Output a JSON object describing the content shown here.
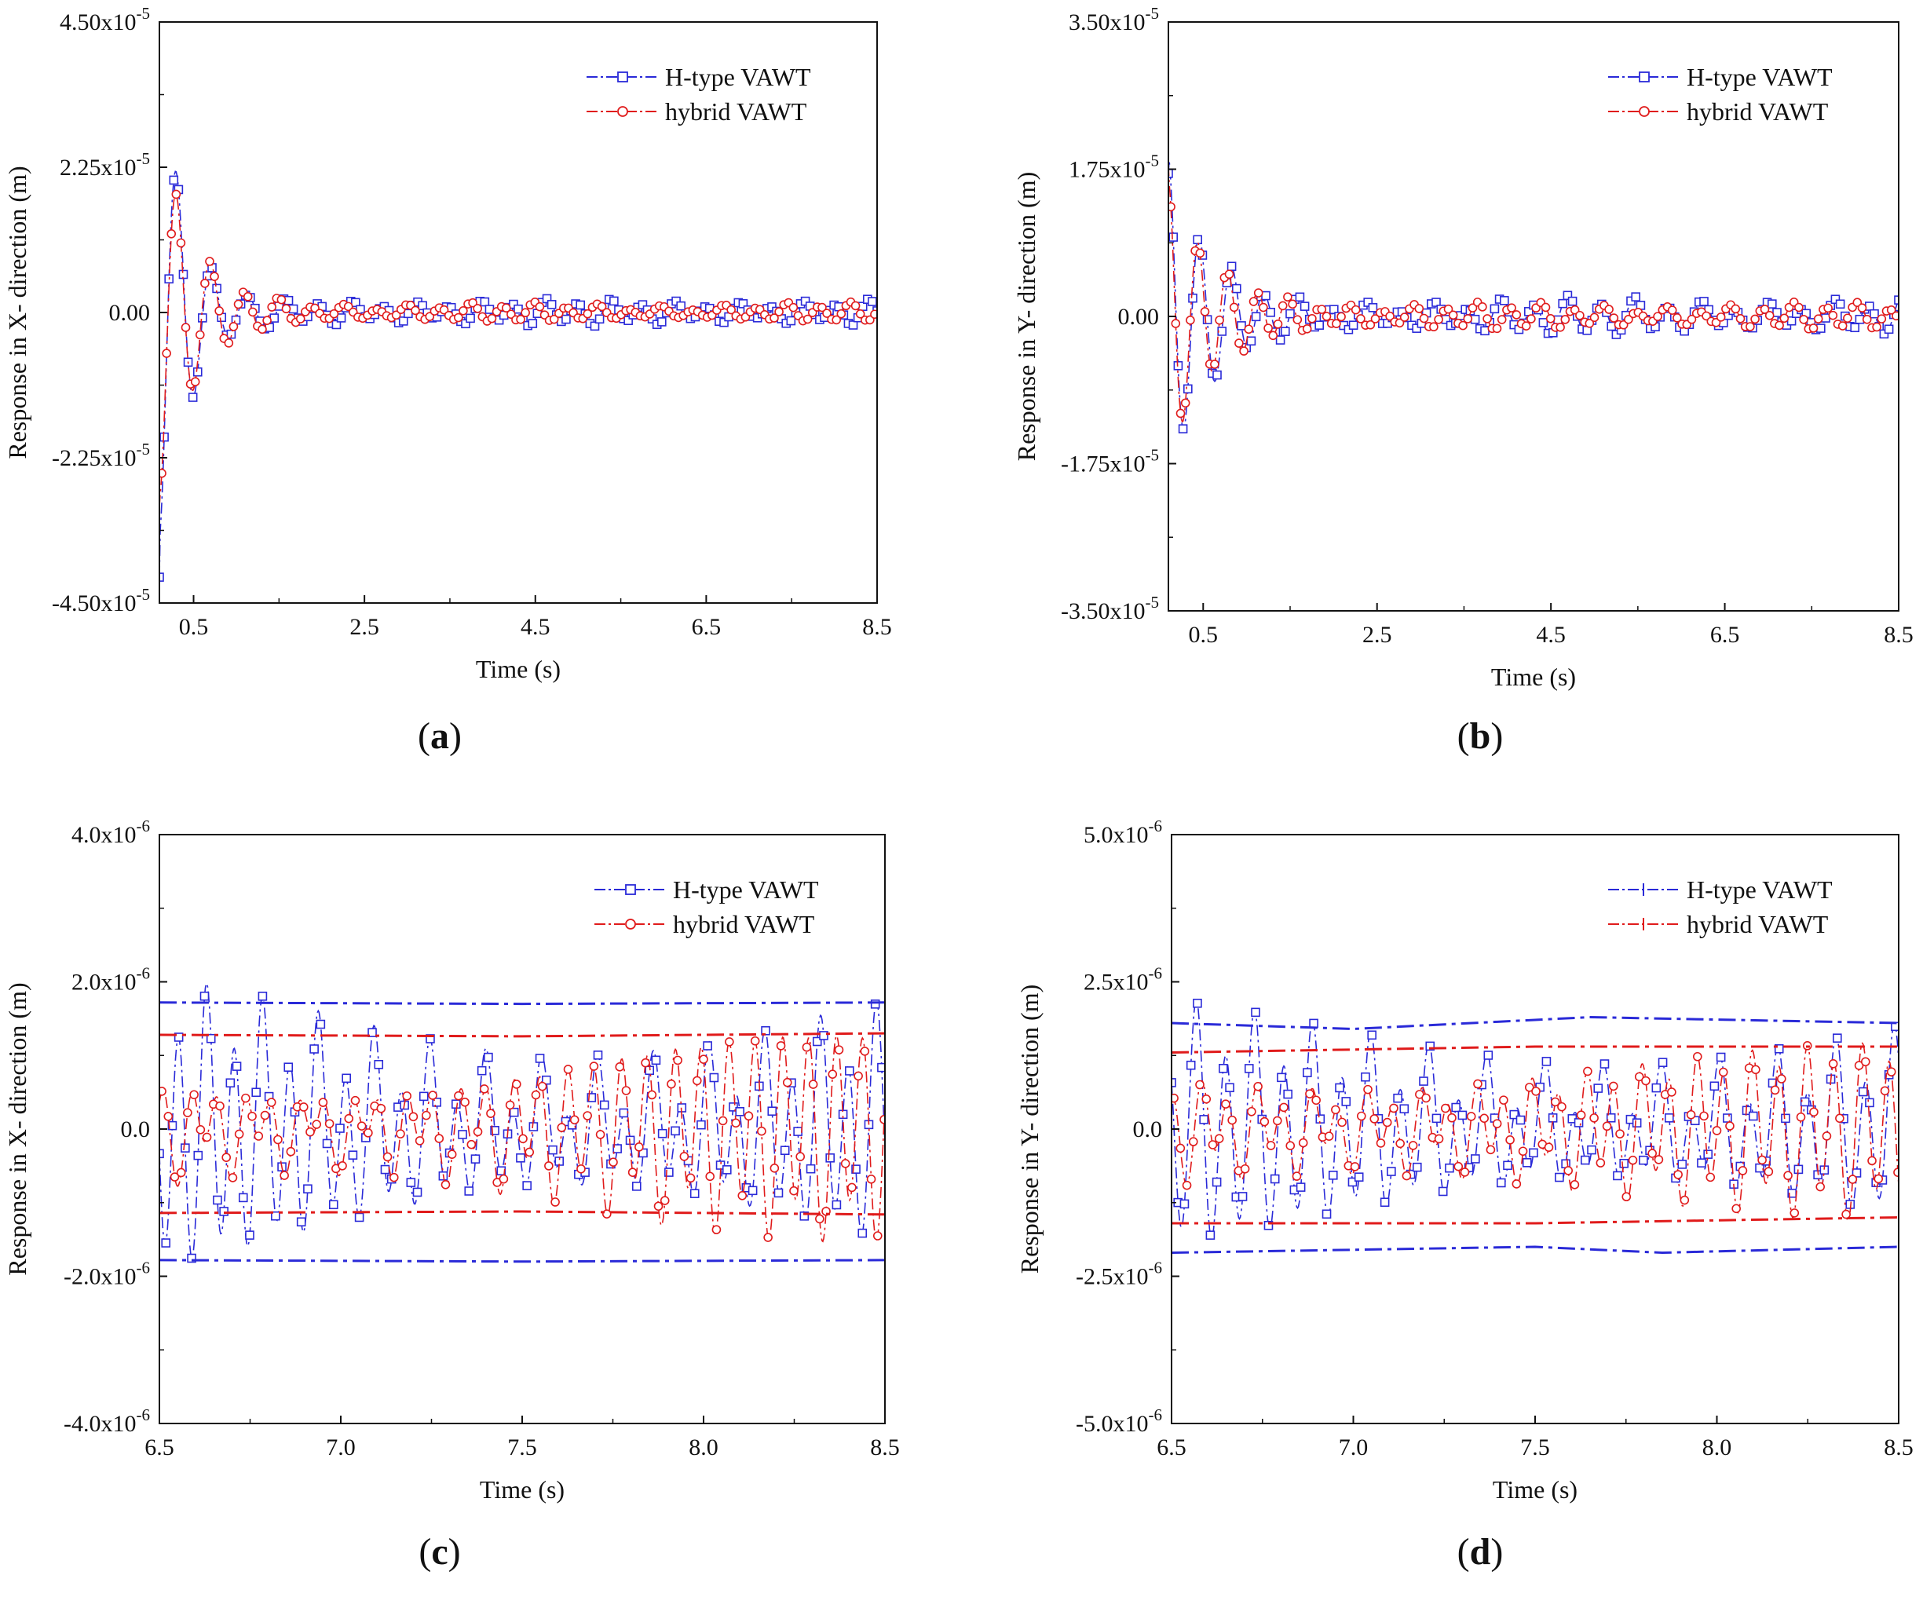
{
  "chart_data": [
    {
      "type": "line",
      "panel_label": "(a)",
      "panel_letter": "a",
      "xlabel": "Time (s)",
      "ylabel": "Response in X- direction (m)",
      "xlim": [
        0.1,
        8.5
      ],
      "ylim": [
        -4.5e-05,
        4.5e-05
      ],
      "xticks": [
        0.5,
        2.5,
        4.5,
        6.5,
        8.5
      ],
      "xtick_labels": [
        "0.5",
        "2.5",
        "4.5",
        "6.5",
        "8.5"
      ],
      "yticks": [
        -4.5e-05,
        -2.25e-05,
        0,
        2.25e-05,
        4.5e-05
      ],
      "ytick_labels": [
        {
          "mant": "-4.50x10",
          "exp": "-5"
        },
        {
          "mant": "-2.25x10",
          "exp": "-5"
        },
        {
          "mant": "0.00",
          "exp": ""
        },
        {
          "mant": "2.25x10",
          "exp": "-5"
        },
        {
          "mant": "4.50x10",
          "exp": "-5"
        }
      ],
      "legend_position": "top-right",
      "legend_marker": "open",
      "series": [
        {
          "name": "H-type VAWT",
          "color": "#2a2ad8",
          "marker": "square",
          "signal": {
            "initial": -4.1e-05,
            "t0": 0.1,
            "peak_amp": 3.7e-05,
            "decay": 2.4,
            "transient_freq": 2.5,
            "steady_amp": 1.5e-06,
            "steady_freq": 2.65,
            "beat_amp": 3e-07,
            "beat_freq": 1.95,
            "phase": 0
          }
        },
        {
          "name": "hybrid VAWT",
          "color": "#e01b1b",
          "marker": "circle",
          "signal": {
            "initial": -3e-05,
            "t0": 0.1,
            "peak_amp": 3e-05,
            "decay": 2.3,
            "transient_freq": 2.55,
            "steady_amp": 1e-06,
            "steady_freq": 2.7,
            "beat_amp": 3e-07,
            "beat_freq": 2.05,
            "phase": 0.8
          }
        }
      ]
    },
    {
      "type": "line",
      "panel_label": "(b)",
      "panel_letter": "b",
      "xlabel": "Time (s)",
      "ylabel": "Response in Y- direction (m)",
      "xlim": [
        0.1,
        8.5
      ],
      "ylim": [
        -3.5e-05,
        3.5e-05
      ],
      "xticks": [
        0.5,
        2.5,
        4.5,
        6.5,
        8.5
      ],
      "xtick_labels": [
        "0.5",
        "2.5",
        "4.5",
        "6.5",
        "8.5"
      ],
      "yticks": [
        -3.5e-05,
        -1.75e-05,
        0,
        1.75e-05,
        3.5e-05
      ],
      "ytick_labels": [
        {
          "mant": "-3.50x10",
          "exp": "-5"
        },
        {
          "mant": "-1.75x10",
          "exp": "-5"
        },
        {
          "mant": "0.00",
          "exp": ""
        },
        {
          "mant": "1.75x10",
          "exp": "-5"
        },
        {
          "mant": "3.50x10",
          "exp": "-5"
        }
      ],
      "legend_position": "top-right",
      "legend_marker": "open",
      "series": [
        {
          "name": "H-type VAWT",
          "color": "#2a2ad8",
          "marker": "square",
          "signal": {
            "initial": 1.7e-05,
            "t0": 0.1,
            "peak_amp": 1.7e-05,
            "decay": 2.1,
            "transient_freq": 2.8,
            "steady_amp": 1.6e-06,
            "steady_freq": 2.6,
            "beat_amp": 4e-07,
            "beat_freq": 1.9,
            "phase": 0.3
          }
        },
        {
          "name": "hybrid VAWT",
          "color": "#e01b1b",
          "marker": "circle",
          "signal": {
            "initial": 1.8e-05,
            "t0": 0.1,
            "peak_amp": 1.6e-05,
            "decay": 2.0,
            "transient_freq": 2.9,
            "steady_amp": 1.1e-06,
            "steady_freq": 2.75,
            "beat_amp": 3e-07,
            "beat_freq": 2.1,
            "phase": 1.1
          }
        }
      ]
    },
    {
      "type": "line",
      "panel_label": "(c)",
      "panel_letter": "c",
      "xlabel": "Time (s)",
      "ylabel": "Response in X- direction (m)",
      "xlim": [
        6.5,
        8.5
      ],
      "ylim": [
        -4e-06,
        4e-06
      ],
      "xticks": [
        6.5,
        7.0,
        7.5,
        8.0,
        8.5
      ],
      "xtick_labels": [
        "6.5",
        "7.0",
        "7.5",
        "8.0",
        "8.5"
      ],
      "yticks": [
        -4e-06,
        -2e-06,
        0,
        2e-06,
        4e-06
      ],
      "ytick_labels": [
        {
          "mant": "-4.0x10",
          "exp": "-6"
        },
        {
          "mant": "-2.0x10",
          "exp": "-6"
        },
        {
          "mant": "0.0",
          "exp": ""
        },
        {
          "mant": "2.0x10",
          "exp": "-6"
        },
        {
          "mant": "4.0x10",
          "exp": "-6"
        }
      ],
      "legend_position": "top-right",
      "legend_marker": "open",
      "series": [
        {
          "name": "H-type VAWT",
          "color": "#2a2ad8",
          "marker": "square",
          "signal": {
            "initial": 0,
            "t0": 6.5,
            "peak_amp": 0,
            "decay": 1,
            "transient_freq": 1,
            "steady_amp": 1.2e-06,
            "steady_freq": 13.0,
            "beat_amp": 6e-07,
            "beat_freq": 2.7,
            "phase": 0.4
          },
          "envelope": {
            "upper": [
              [
                6.5,
                1.72e-06
              ],
              [
                7.5,
                1.7e-06
              ],
              [
                8.5,
                1.72e-06
              ]
            ],
            "lower": [
              [
                6.5,
                -1.78e-06
              ],
              [
                7.5,
                -1.8e-06
              ],
              [
                8.5,
                -1.78e-06
              ]
            ]
          }
        },
        {
          "name": "hybrid VAWT",
          "color": "#e01b1b",
          "marker": "circle",
          "signal": {
            "initial": 0,
            "t0": 6.5,
            "peak_amp": 0,
            "decay": 1,
            "transient_freq": 1,
            "steady_amp": 8e-07,
            "steady_freq": 13.5,
            "beat_amp": 4.5e-07,
            "beat_freq": 2.7,
            "phase": 2.0
          },
          "envelope": {
            "upper": [
              [
                6.5,
                1.28e-06
              ],
              [
                7.5,
                1.26e-06
              ],
              [
                8.5,
                1.3e-06
              ]
            ],
            "lower": [
              [
                6.5,
                -1.14e-06
              ],
              [
                7.5,
                -1.12e-06
              ],
              [
                8.5,
                -1.16e-06
              ]
            ]
          }
        }
      ]
    },
    {
      "type": "line",
      "panel_label": "(d)",
      "panel_letter": "d",
      "xlabel": "Time (s)",
      "ylabel": "Response in Y- direction (m)",
      "xlim": [
        6.5,
        8.5
      ],
      "ylim": [
        -5e-06,
        5e-06
      ],
      "xticks": [
        6.5,
        7.0,
        7.5,
        8.0,
        8.5
      ],
      "xtick_labels": [
        "6.5",
        "7.0",
        "7.5",
        "8.0",
        "8.5"
      ],
      "yticks": [
        -5e-06,
        -2.5e-06,
        0,
        2.5e-06,
        5e-06
      ],
      "ytick_labels": [
        {
          "mant": "-5.0x10",
          "exp": "-6"
        },
        {
          "mant": "-2.5x10",
          "exp": "-6"
        },
        {
          "mant": "0.0",
          "exp": ""
        },
        {
          "mant": "2.5x10",
          "exp": "-6"
        },
        {
          "mant": "5.0x10",
          "exp": "-6"
        }
      ],
      "legend_position": "top-right",
      "legend_marker": "cross",
      "series": [
        {
          "name": "H-type VAWT",
          "color": "#2a2ad8",
          "marker": "square",
          "signal": {
            "initial": 0,
            "t0": 6.5,
            "peak_amp": 0,
            "decay": 1,
            "transient_freq": 1,
            "steady_amp": 1.3e-06,
            "steady_freq": 12.5,
            "beat_amp": 6e-07,
            "beat_freq": 2.6,
            "phase": 0.9
          },
          "envelope": {
            "upper": [
              [
                6.5,
                1.8e-06
              ],
              [
                7.0,
                1.7e-06
              ],
              [
                7.65,
                1.9e-06
              ],
              [
                8.5,
                1.8e-06
              ]
            ],
            "lower": [
              [
                6.5,
                -2.1e-06
              ],
              [
                7.5,
                -2e-06
              ],
              [
                7.85,
                -2.1e-06
              ],
              [
                8.5,
                -2e-06
              ]
            ]
          }
        },
        {
          "name": "hybrid VAWT",
          "color": "#e01b1b",
          "marker": "circle",
          "signal": {
            "initial": 0,
            "t0": 6.5,
            "peak_amp": 0,
            "decay": 1,
            "transient_freq": 1,
            "steady_amp": 9e-07,
            "steady_freq": 13.2,
            "beat_amp": 4e-07,
            "beat_freq": 2.6,
            "phase": 2.4
          },
          "envelope": {
            "upper": [
              [
                6.5,
                1.3e-06
              ],
              [
                7.5,
                1.4e-06
              ],
              [
                8.5,
                1.4e-06
              ]
            ],
            "lower": [
              [
                6.5,
                -1.6e-06
              ],
              [
                7.5,
                -1.6e-06
              ],
              [
                8.5,
                -1.5e-06
              ]
            ]
          }
        }
      ]
    }
  ]
}
